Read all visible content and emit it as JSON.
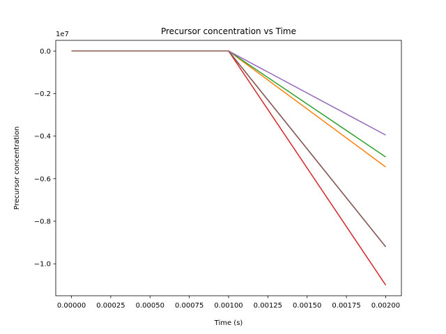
{
  "chart_data": {
    "type": "line",
    "title": "Precursor concentration vs Time",
    "xlabel": "Time (s)",
    "ylabel": "Precursor concentration",
    "y_scale_label": "1e7",
    "xlim": [
      -0.0001,
      0.0021
    ],
    "ylim": [
      -11500000,
      500000
    ],
    "x_ticks": [
      0.0,
      0.00025,
      0.0005,
      0.00075,
      0.001,
      0.00125,
      0.0015,
      0.00175,
      0.002
    ],
    "x_tick_labels": [
      "0.00000",
      "0.00025",
      "0.00050",
      "0.00075",
      "0.00100",
      "0.00125",
      "0.00150",
      "0.00175",
      "0.00200"
    ],
    "y_ticks": [
      0,
      -2000000,
      -4000000,
      -6000000,
      -8000000,
      -10000000
    ],
    "y_tick_labels": [
      "0.0",
      "−0.2",
      "−0.4",
      "−0.6",
      "−0.8",
      "−1.0"
    ],
    "grid": false,
    "x": [
      0.0,
      0.001,
      0.002
    ],
    "series": [
      {
        "color": "#1f77b4",
        "values": [
          0,
          0,
          -9200000
        ]
      },
      {
        "color": "#ff7f0e",
        "values": [
          0,
          0,
          -5450000
        ]
      },
      {
        "color": "#2ca02c",
        "values": [
          0,
          0,
          -4980000
        ]
      },
      {
        "color": "#d62728",
        "values": [
          0,
          0,
          -11000000
        ]
      },
      {
        "color": "#9467bd",
        "values": [
          0,
          0,
          -3950000
        ]
      },
      {
        "color": "#8c564b",
        "values": [
          0,
          0,
          -9200000
        ]
      }
    ]
  }
}
